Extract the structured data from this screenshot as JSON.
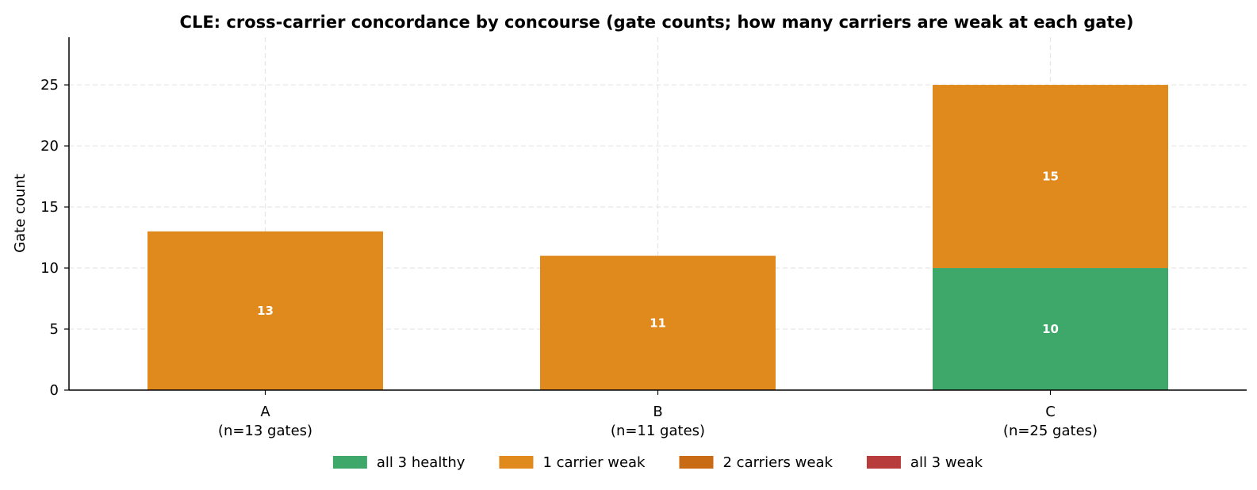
{
  "chart_data": {
    "type": "bar",
    "stacked": true,
    "title": "CLE: cross-carrier concordance by concourse (gate counts; how many carriers are weak at each gate)",
    "xlabel": "",
    "ylabel": "Gate count",
    "ylim": [
      0,
      28.9
    ],
    "yticks": [
      0,
      5,
      10,
      15,
      20,
      25
    ],
    "grid": true,
    "legend_position": "bottom",
    "categories": [
      "A",
      "B",
      "C"
    ],
    "category_sublabels": [
      "(n=13 gates)",
      "(n=11 gates)",
      "(n=25 gates)"
    ],
    "series": [
      {
        "name": "all 3 healthy",
        "color": "#3da86a",
        "values": [
          0,
          0,
          10
        ]
      },
      {
        "name": "1 carrier weak",
        "color": "#e08a1e",
        "values": [
          13,
          11,
          15
        ]
      },
      {
        "name": "2 carriers weak",
        "color": "#c96a14",
        "values": [
          0,
          0,
          0
        ]
      },
      {
        "name": "all 3 weak",
        "color": "#b83c3c",
        "values": [
          0,
          0,
          0
        ]
      }
    ]
  }
}
